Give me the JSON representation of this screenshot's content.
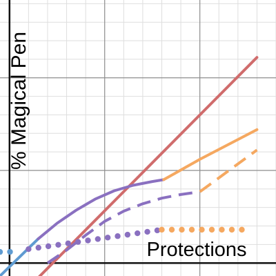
{
  "colors": {
    "minor_grid": "#dedede",
    "major_grid": "#8c8c8c",
    "axis": "#111111",
    "red": "#d06c6c",
    "orange": "#f5a860",
    "purple": "#8a70c0",
    "blue": "#5f9bd1"
  },
  "chart_data": {
    "type": "line",
    "title": "",
    "xlabel": "",
    "ylabel": "% Magical Pen",
    "annotation": "Protections",
    "xlim": [
      -0.05,
      1.4
    ],
    "ylim": [
      -0.07,
      1.42
    ],
    "grid": true,
    "legend": "none",
    "series": [
      {
        "color": "red",
        "style": "solid",
        "x": [
          0.15,
          1.3
        ],
        "y": [
          -0.08,
          1.11
        ]
      },
      {
        "color": "blue",
        "style": "solid",
        "x": [
          -0.05,
          0.0,
          0.05,
          0.1,
          0.15
        ],
        "y": [
          -0.07,
          -0.02,
          0.03,
          0.08,
          0.13
        ]
      },
      {
        "color": "purple",
        "style": "solid",
        "x": [
          0.15,
          0.25,
          0.35,
          0.45,
          0.55,
          0.65,
          0.75,
          0.81
        ],
        "y": [
          0.13,
          0.215,
          0.285,
          0.345,
          0.39,
          0.42,
          0.44,
          0.45
        ]
      },
      {
        "color": "orange",
        "style": "solid",
        "x": [
          0.81,
          1.0,
          1.3
        ],
        "y": [
          0.45,
          0.56,
          0.72
        ]
      },
      {
        "color": "purple",
        "style": "dashed",
        "x": [
          0.2,
          0.3,
          0.4,
          0.5,
          0.6,
          0.7,
          0.8,
          0.9,
          1.0
        ],
        "y": [
          0.0,
          0.07,
          0.15,
          0.225,
          0.28,
          0.32,
          0.35,
          0.37,
          0.385
        ]
      },
      {
        "color": "orange",
        "style": "dashed",
        "x": [
          1.0,
          1.3
        ],
        "y": [
          0.385,
          0.61
        ]
      },
      {
        "color": "blue",
        "style": "dotted",
        "x": [
          -0.05,
          0.0,
          0.05
        ],
        "y": [
          0.06,
          0.06,
          0.065
        ]
      },
      {
        "color": "purple",
        "style": "dotted",
        "x": [
          0.1,
          0.2,
          0.3,
          0.4,
          0.5,
          0.6,
          0.7,
          0.8
        ],
        "y": [
          0.075,
          0.09,
          0.105,
          0.12,
          0.135,
          0.15,
          0.165,
          0.18
        ]
      },
      {
        "color": "orange",
        "style": "dotted",
        "x": [
          0.8,
          0.9,
          1.0,
          1.1,
          1.2,
          1.27
        ],
        "y": [
          0.18,
          0.18,
          0.18,
          0.18,
          0.18,
          0.18
        ]
      }
    ]
  }
}
